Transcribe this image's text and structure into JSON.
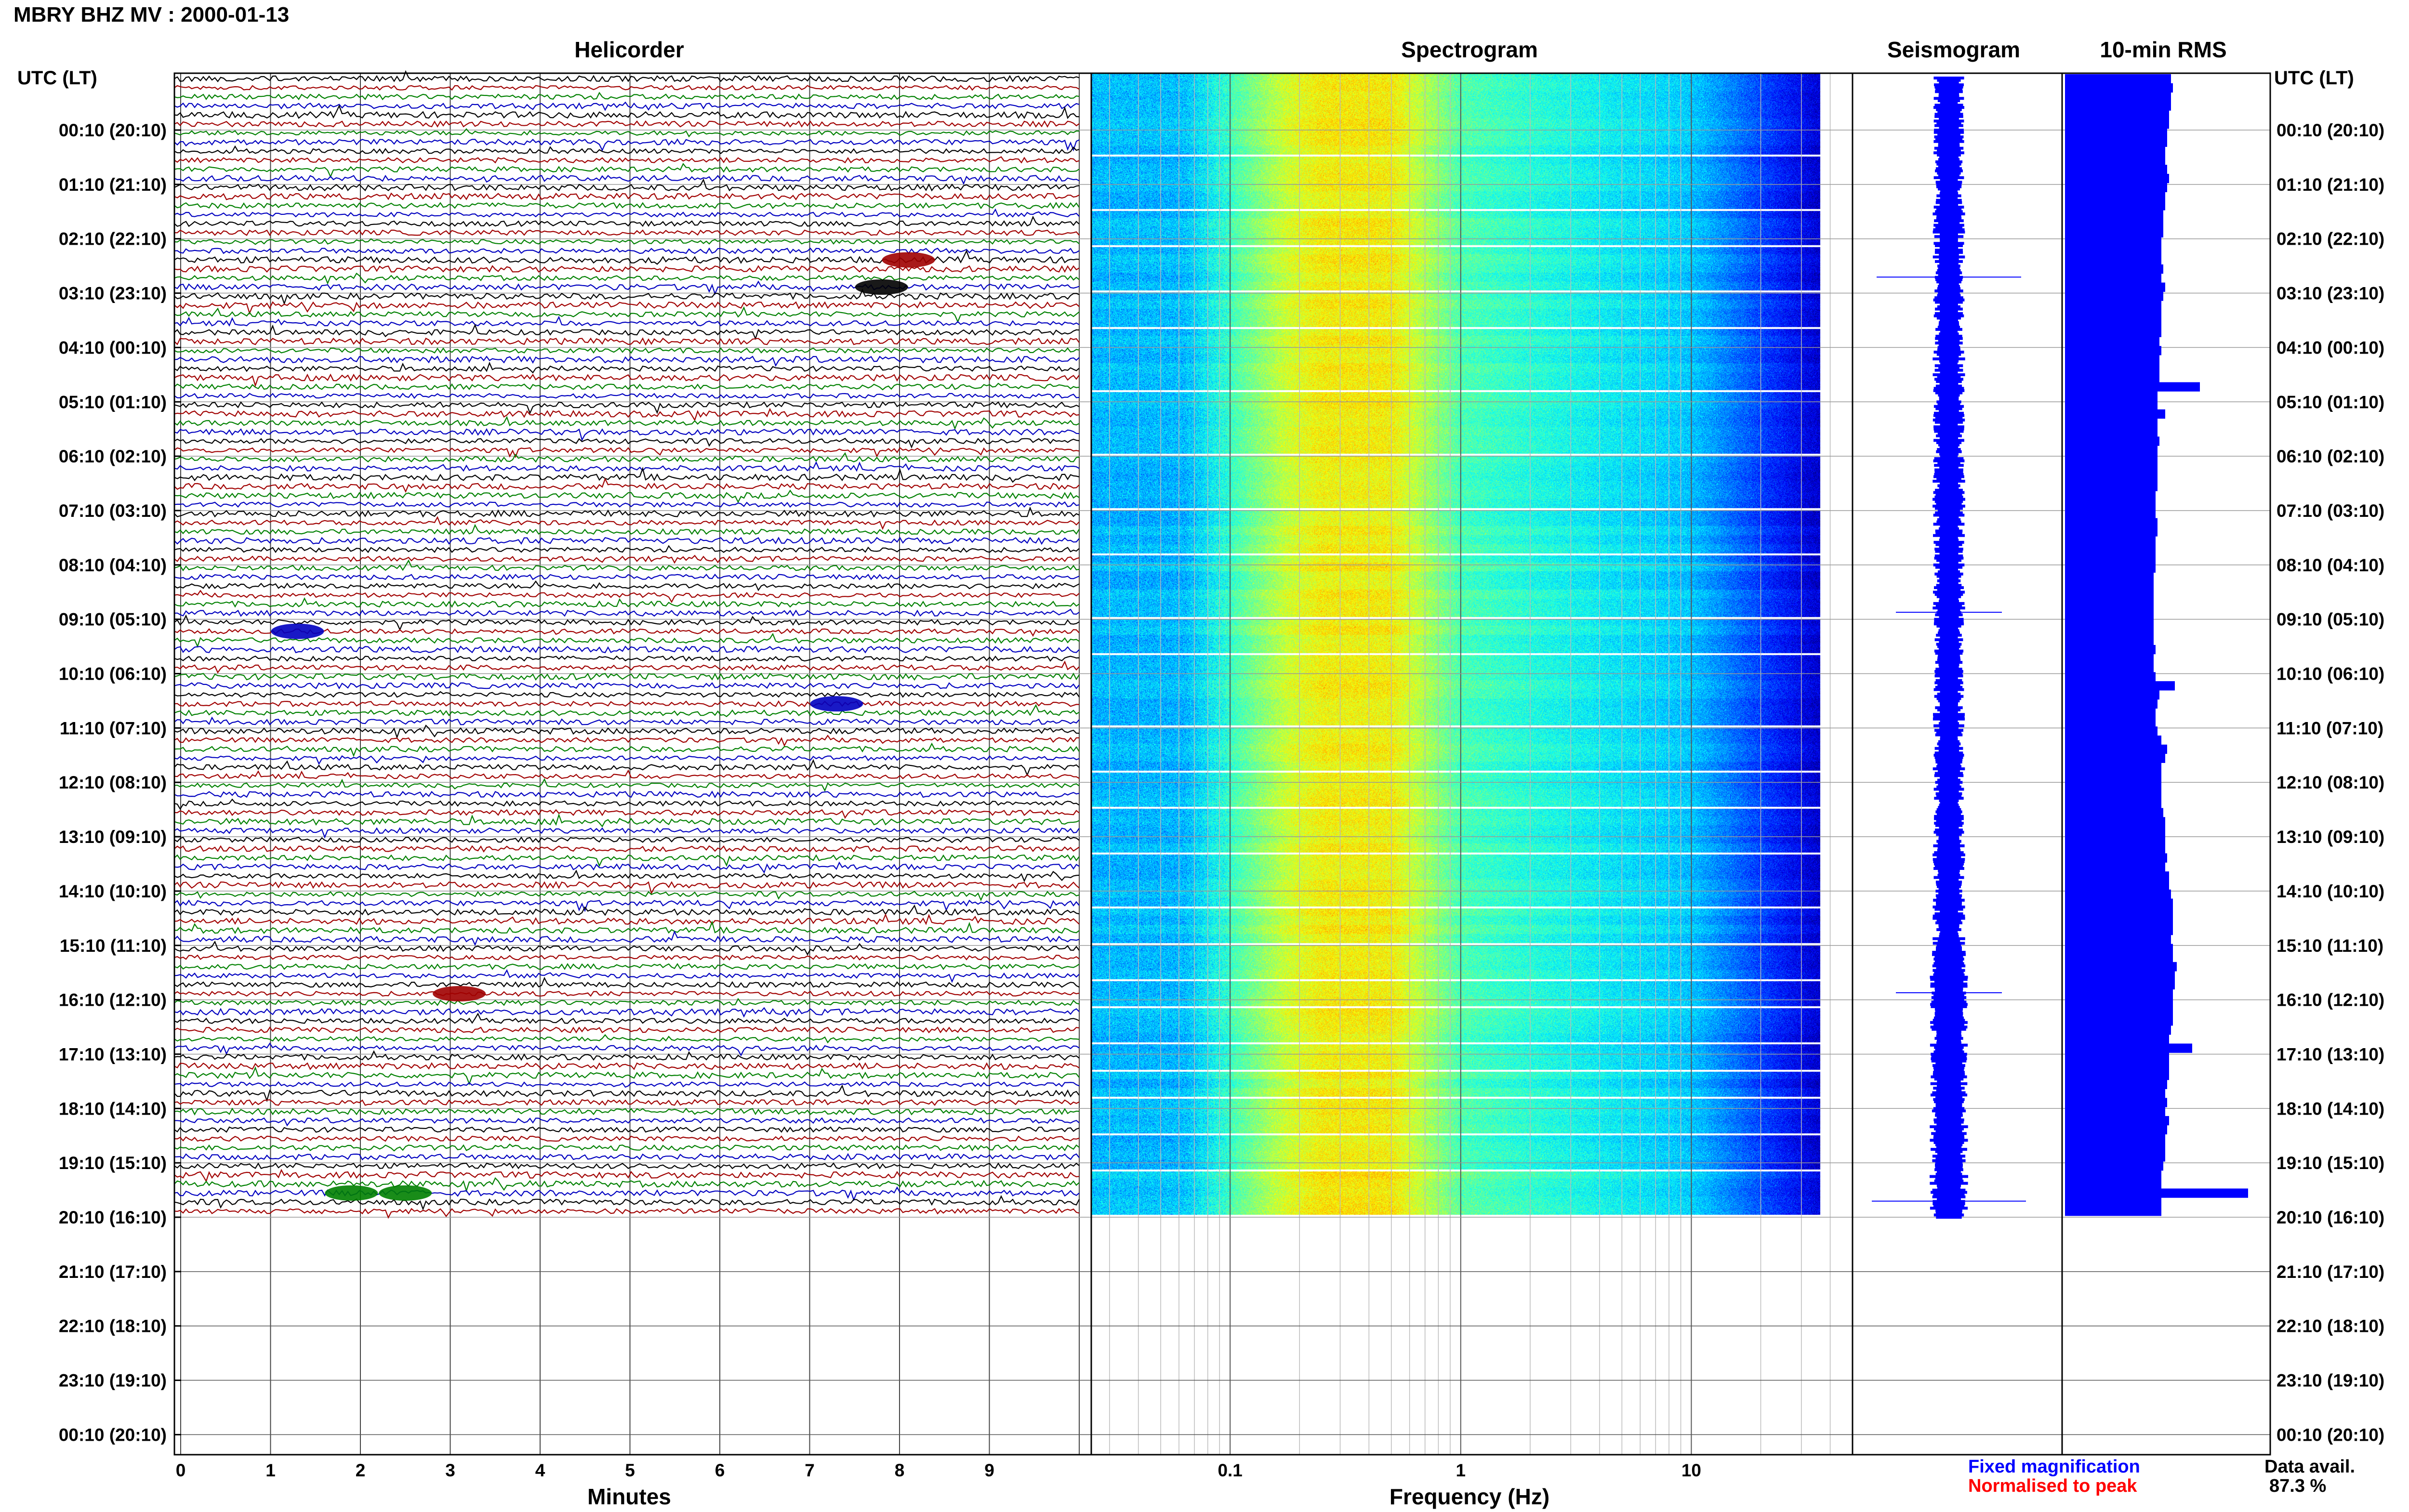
{
  "title": "MBRY BHZ MV : 2000-01-13",
  "panels": {
    "helicorder": "Helicorder",
    "spectrogram": "Spectrogram",
    "seismogram": "Seismogram",
    "rms": "10-min RMS"
  },
  "axis": {
    "utc_left": "UTC (LT)",
    "utc_right": "UTC (LT)",
    "minutes_label": "Minutes",
    "frequency_label": "Frequency (Hz)"
  },
  "legend": {
    "fixed": "Fixed magnification",
    "normalised": "Normalised to peak",
    "data_avail_label": "Data avail.",
    "data_avail_value": "87.3 %"
  },
  "colors": {
    "fixed": "#0000ff",
    "normalised": "#ff0000",
    "trace_cycle": [
      "#000000",
      "#a00000",
      "#008000",
      "#0000c0"
    ],
    "rms_bar": "#0000ff"
  },
  "chart_data": {
    "type": "heatmap",
    "time_ticks": [
      "00:10 (20:10)",
      "01:10 (21:10)",
      "02:10 (22:10)",
      "03:10 (23:10)",
      "04:10 (00:10)",
      "05:10 (01:10)",
      "06:10 (02:10)",
      "07:10 (03:10)",
      "08:10 (04:10)",
      "09:10 (05:10)",
      "10:10 (06:10)",
      "11:10 (07:10)",
      "12:10 (08:10)",
      "13:10 (09:10)",
      "14:10 (10:10)",
      "15:10 (11:10)",
      "16:10 (12:10)",
      "17:10 (13:10)",
      "18:10 (14:10)",
      "19:10 (15:10)",
      "20:10 (16:10)",
      "21:10 (17:10)",
      "22:10 (18:10)",
      "23:10 (19:10)",
      "00:10 (20:10)"
    ],
    "minutes_ticks": [
      "0",
      "1",
      "2",
      "3",
      "4",
      "5",
      "6",
      "7",
      "8",
      "9"
    ],
    "minutes_range": [
      0,
      10
    ],
    "frequency_ticks": [
      "0.1",
      "1",
      "10"
    ],
    "frequency_range": [
      0.025,
      50
    ],
    "frequency_scale": "log",
    "rows_with_data": 126,
    "rms_values": [
      0.55,
      0.56,
      0.55,
      0.55,
      0.54,
      0.54,
      0.53,
      0.53,
      0.52,
      0.52,
      0.53,
      0.54,
      0.53,
      0.52,
      0.52,
      0.51,
      0.51,
      0.51,
      0.5,
      0.5,
      0.5,
      0.51,
      0.5,
      0.52,
      0.51,
      0.5,
      0.5,
      0.5,
      0.5,
      0.49,
      0.5,
      0.49,
      0.49,
      0.49,
      0.7,
      0.48,
      0.48,
      0.52,
      0.48,
      0.48,
      0.49,
      0.48,
      0.48,
      0.48,
      0.48,
      0.48,
      0.47,
      0.47,
      0.47,
      0.48,
      0.48,
      0.47,
      0.47,
      0.47,
      0.47,
      0.46,
      0.46,
      0.46,
      0.46,
      0.46,
      0.46,
      0.46,
      0.46,
      0.47,
      0.46,
      0.46,
      0.47,
      0.57,
      0.49,
      0.48,
      0.47,
      0.47,
      0.48,
      0.5,
      0.53,
      0.52,
      0.5,
      0.5,
      0.5,
      0.5,
      0.5,
      0.51,
      0.52,
      0.52,
      0.52,
      0.52,
      0.53,
      0.52,
      0.54,
      0.54,
      0.55,
      0.56,
      0.56,
      0.56,
      0.56,
      0.55,
      0.56,
      0.56,
      0.58,
      0.57,
      0.57,
      0.56,
      0.56,
      0.56,
      0.56,
      0.55,
      0.54,
      0.66,
      0.54,
      0.54,
      0.54,
      0.53,
      0.52,
      0.53,
      0.52,
      0.54,
      0.53,
      0.52,
      0.52,
      0.52,
      0.51,
      0.5,
      0.5,
      0.95,
      0.5,
      0.5
    ],
    "rms_range": [
      0,
      1
    ],
    "events": [
      {
        "minute": 8.1,
        "row": 20,
        "color_index": 1
      },
      {
        "minute": 7.8,
        "row": 23,
        "color_index": 0
      },
      {
        "minute": 1.3,
        "row": 61,
        "color_index": 3
      },
      {
        "minute": 7.3,
        "row": 69,
        "color_index": 3
      },
      {
        "minute": 3.1,
        "row": 101,
        "color_index": 1
      },
      {
        "minute": 1.9,
        "row": 123,
        "color_index": 2
      },
      {
        "minute": 2.5,
        "row": 123,
        "color_index": 2
      }
    ]
  }
}
